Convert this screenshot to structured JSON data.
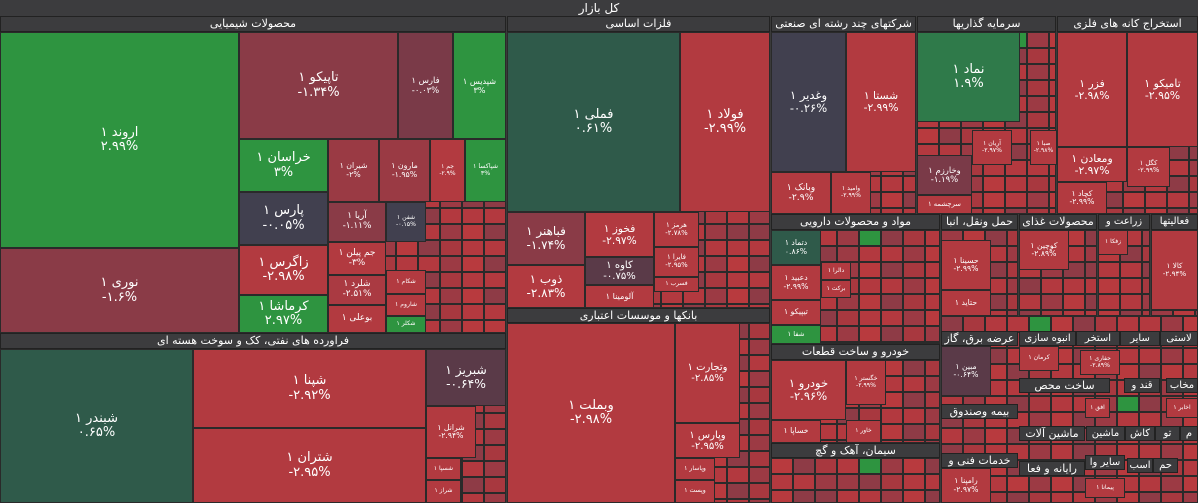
{
  "title": "کل بازار",
  "sectors": [
    {
      "name": "محصولات شیمیایی",
      "tiles": [
        {
          "name": "اروند ۱",
          "change": "۲.۹۹%",
          "color": "#2e9440"
        },
        {
          "name": "نوری ۱",
          "change": "-۱.۶%",
          "color": "#8a3b47"
        },
        {
          "name": "تاپیکو ۱",
          "change": "-۱.۳۴%",
          "color": "#8a3b47"
        },
        {
          "name": "فارس ۱",
          "change": "-۰.۰۳%",
          "color": "#7a3a48"
        },
        {
          "name": "شپدیس ۱",
          "change": "۳%",
          "color": "#2e9440"
        },
        {
          "name": "خراسان ۱",
          "change": "۳%",
          "color": "#2e9440"
        },
        {
          "name": "پارس ۱",
          "change": "-۰.۰۵%",
          "color": "#41404f"
        },
        {
          "name": "زاگرس ۱",
          "change": "-۲.۹۸%",
          "color": "#b23a40"
        },
        {
          "name": "کرماشا ۱",
          "change": "۲.۹۷%",
          "color": "#2e9440"
        },
        {
          "name": "شیران ۱",
          "change": "-۲%",
          "color": "#9a3a44"
        },
        {
          "name": "مارون ۱",
          "change": "-۱.۹۵%",
          "color": "#9a3a44"
        },
        {
          "name": "جم ۱",
          "change": "-۲.۹%",
          "color": "#b23a40"
        },
        {
          "name": "شپاکسا ۱",
          "change": "۳%",
          "color": "#2e9440"
        },
        {
          "name": "آریا ۱",
          "change": "-۱.۱۱%",
          "color": "#8a3b47"
        },
        {
          "name": "شفن ۱",
          "change": "-۰.۱۵%",
          "color": "#41404f"
        },
        {
          "name": "جم پیلن ۱",
          "change": "-۳%",
          "color": "#b23a40"
        },
        {
          "name": "شلرد ۱",
          "change": "-۲.۵۱%",
          "color": "#aa3a42"
        },
        {
          "name": "بوعلی ۱",
          "color": "#b23a40"
        },
        {
          "name": "شکام ۱",
          "color": "#b23a40"
        },
        {
          "name": "شاروم ۱",
          "color": "#b23a40"
        },
        {
          "name": "شکلر ۱",
          "color": "#2e9440"
        }
      ]
    },
    {
      "name": "فلزات اساسی",
      "tiles": [
        {
          "name": "فملی ۱",
          "change": "۰.۶۱%",
          "color": "#2f5a4a"
        },
        {
          "name": "فولاد ۱",
          "change": "-۲.۹۹%",
          "color": "#b23a40"
        },
        {
          "name": "فباهنر ۱",
          "change": "-۱.۷۴%",
          "color": "#8a3b47"
        },
        {
          "name": "ذوب ۱",
          "change": "-۲.۸۳%",
          "color": "#b23a40"
        },
        {
          "name": "فخوز ۱",
          "change": "-۲.۹۷%",
          "color": "#b23a40"
        },
        {
          "name": "کاوه ۱",
          "change": "-۰.۷۵%",
          "color": "#5a3a48"
        },
        {
          "name": "آلومینا ۱",
          "color": "#b23a40"
        },
        {
          "name": "هرمز ۱",
          "change": "-۲.۷۸%",
          "color": "#b23a40"
        },
        {
          "name": "فایرا ۱",
          "change": "-۲.۹۵%",
          "color": "#b23a40"
        },
        {
          "name": "فسرب ۱",
          "color": "#b23a40"
        }
      ]
    },
    {
      "name": "شرکتهای چند رشته ای صنعتی",
      "tiles": [
        {
          "name": "وغدیر ۱",
          "change": "-۰.۲۶%",
          "color": "#41404f"
        },
        {
          "name": "شستا ۱",
          "change": "-۲.۹۹%",
          "color": "#b23a40"
        },
        {
          "name": "وبانک ۱",
          "change": "-۲.۹%",
          "color": "#b23a40"
        },
        {
          "name": "وامید ۱",
          "change": "-۲.۹۹%",
          "color": "#b23a40"
        }
      ]
    },
    {
      "name": "سرمایه گذاریها",
      "tiles": [
        {
          "name": "نماد ۱",
          "change": "۱.۹%",
          "color": "#2f7a4a"
        },
        {
          "name": "وخارزم ۱",
          "change": "-۱.۱۹%",
          "color": "#7a3a48"
        },
        {
          "name": "سرچشمه ۱",
          "color": "#b23a40"
        },
        {
          "name": "آریان ۱",
          "change": "-۲.۹۷%",
          "color": "#b23a40"
        },
        {
          "name": "صبا ۱",
          "change": "-۲.۹۸%",
          "color": "#b23a40"
        }
      ]
    },
    {
      "name": "استخراج کانه های فلزی",
      "tiles": [
        {
          "name": "فزر ۱",
          "change": "-۲.۹۸%",
          "color": "#b23a40"
        },
        {
          "name": "تامیکو ۱",
          "change": "-۲.۹۵%",
          "color": "#b23a40"
        },
        {
          "name": "ومعادن ۱",
          "change": "-۲.۹۷%",
          "color": "#b23a40"
        },
        {
          "name": "کگل ۱",
          "change": "-۲.۹۹%",
          "color": "#b23a40"
        },
        {
          "name": "کچاد ۱",
          "change": "-۲.۹۹%",
          "color": "#b23a40"
        }
      ]
    },
    {
      "name": "فراورده های نفتی، کک و سوخت هسته ای",
      "tiles": [
        {
          "name": "شبندر ۱",
          "change": "۰.۶۵%",
          "color": "#2f5a4a"
        },
        {
          "name": "شپنا ۱",
          "change": "-۲.۹۲%",
          "color": "#b23a40"
        },
        {
          "name": "شتران ۱",
          "change": "-۲.۹۵%",
          "color": "#b23a40"
        },
        {
          "name": "شبریز ۱",
          "change": "-۰.۶۴%",
          "color": "#5a3a48"
        },
        {
          "name": "شرانل ۱",
          "change": "-۲.۹۴%",
          "color": "#b23a40"
        },
        {
          "name": "شسپا ۱",
          "color": "#b23a40"
        },
        {
          "name": "شراز ۱",
          "color": "#b23a40"
        }
      ]
    },
    {
      "name": "بانکها و موسسات اعتباری",
      "tiles": [
        {
          "name": "وبملت ۱",
          "change": "-۲.۹۸%",
          "color": "#b23a40"
        },
        {
          "name": "وتجارت ۱",
          "change": "-۲.۸۵%",
          "color": "#b23a40"
        },
        {
          "name": "وپارس ۱",
          "change": "-۲.۹۵%",
          "color": "#b23a40"
        },
        {
          "name": "وپاسار ۱",
          "color": "#b23a40"
        },
        {
          "name": "وپست ۱",
          "color": "#b23a40"
        }
      ]
    },
    {
      "name": "مواد و محصولات دارویی",
      "tiles": [
        {
          "name": "دتماد ۱",
          "change": "۰.۸۶%",
          "color": "#2f5a4a"
        },
        {
          "name": "دعبید ۱",
          "change": "-۲.۹۹%",
          "color": "#b23a40"
        },
        {
          "name": "تیپیکو ۱",
          "color": "#b23a40"
        },
        {
          "name": "شفا ۱",
          "color": "#2e9440"
        },
        {
          "name": "دالرا ۱",
          "color": "#b23a40"
        },
        {
          "name": "برکت ۱",
          "color": "#b23a40"
        }
      ]
    },
    {
      "name": "خودرو و ساخت قطعات",
      "tiles": [
        {
          "name": "خودرو ۱",
          "change": "-۲.۹۶%",
          "color": "#b23a40"
        },
        {
          "name": "خساپا ۱",
          "color": "#b23a40"
        },
        {
          "name": "خگستر ۱",
          "change": "-۲.۹۹%",
          "color": "#b23a40"
        },
        {
          "name": "خاور ۱",
          "color": "#b23a40"
        }
      ]
    },
    {
      "name": "سیمان، آهک و گچ"
    },
    {
      "name": "حمل ونقل، انبا",
      "tiles": [
        {
          "name": "حسینا ۱",
          "change": "-۲.۹۹%",
          "color": "#b23a40"
        },
        {
          "name": "حتاید ۱",
          "color": "#b23a40"
        }
      ]
    },
    {
      "name": "محصولات غذای",
      "tiles": [
        {
          "name": "کوچین ۱",
          "change": "-۲.۸۹%",
          "color": "#b23a40"
        }
      ]
    },
    {
      "name": "زراعت و",
      "tiles": [
        {
          "name": "زفکا ۱",
          "color": "#b23a40"
        }
      ]
    },
    {
      "name": "فعالیتها",
      "tiles": [
        {
          "name": "کالا ۱",
          "change": "-۲.۹۴%",
          "color": "#b23a40"
        }
      ]
    },
    {
      "name": "عرضه برق، گاز",
      "tiles": [
        {
          "name": "مبین ۱",
          "change": "-۰.۶۴%",
          "color": "#5a3a48"
        }
      ]
    },
    {
      "name": "انبوه سازی",
      "tiles": [
        {
          "name": "کرمان ۱",
          "color": "#b23a40"
        }
      ]
    },
    {
      "name": "استخر",
      "tiles": [
        {
          "name": "حفاری ۱",
          "change": "-۲.۸۹%",
          "color": "#b23a40"
        }
      ]
    },
    {
      "name": "سایر"
    },
    {
      "name": "لاستی"
    },
    {
      "name": "ساخت محص",
      "tiles": [
        {
          "name": "افق ۱",
          "color": "#b23a40"
        }
      ]
    },
    {
      "name": "قند و"
    },
    {
      "name": "مخاب",
      "tiles": [
        {
          "name": "اخابر ۱",
          "color": "#b23a40"
        }
      ]
    },
    {
      "name": "بیمه وصندوق"
    },
    {
      "name": "ماشین آلات"
    },
    {
      "name": "ماشین"
    },
    {
      "name": "کاش"
    },
    {
      "name": "تو"
    },
    {
      "name": "م"
    },
    {
      "name": "خدمات فنی و",
      "tiles": [
        {
          "name": "رامپنا ۱",
          "change": "-۲.۹۷%",
          "color": "#b23a40"
        }
      ]
    },
    {
      "name": "رایانه و فعا"
    },
    {
      "name": "سایر وا",
      "tiles": [
        {
          "name": "پیمانا ۱",
          "color": "#b23a40"
        }
      ]
    },
    {
      "name": "اسب"
    },
    {
      "name": "حم"
    }
  ]
}
